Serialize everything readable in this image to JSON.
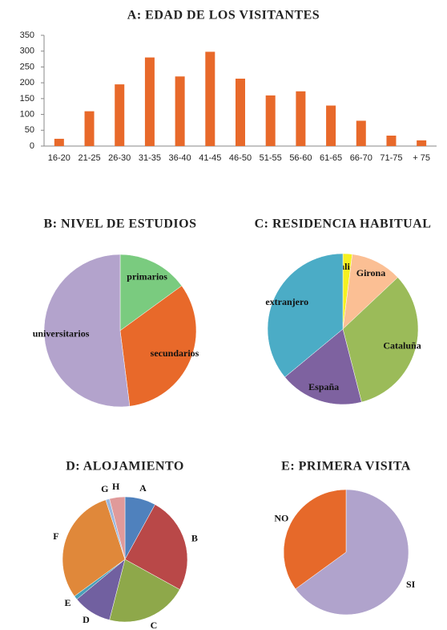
{
  "chart_data": [
    {
      "type": "bar",
      "title": "A: EDAD  DE LOS VISITANTES",
      "categories": [
        "16-20",
        "21-25",
        "26-30",
        "31-35",
        "36-40",
        "41-45",
        "46-50",
        "51-55",
        "56-60",
        "61-65",
        "66-70",
        "71-75",
        "+ 75"
      ],
      "values": [
        23,
        110,
        195,
        280,
        220,
        298,
        213,
        160,
        173,
        128,
        80,
        33,
        18
      ],
      "color": "#e8692a",
      "ylim": [
        0,
        350
      ],
      "yticks": [
        0,
        50,
        100,
        150,
        200,
        250,
        300,
        350
      ]
    },
    {
      "type": "pie",
      "title": "B: NIVEL DE ESTUDIOS",
      "categories": [
        "primarios",
        "secundarios",
        "universitarios"
      ],
      "values": [
        15,
        33,
        52
      ],
      "colors": [
        "#7acb7f",
        "#e8692a",
        "#b3a3cc"
      ]
    },
    {
      "type": "pie",
      "title": "C: RESIDENCIA HABITUAL",
      "categories": [
        "localidad",
        "Girona",
        "Cataluña",
        "España",
        "extranjero"
      ],
      "values": [
        2,
        11,
        33,
        18,
        36
      ],
      "colors": [
        "#f5f020",
        "#fbbf94",
        "#9bbb59",
        "#7e62a0",
        "#4bacc6"
      ]
    },
    {
      "type": "pie",
      "title": "D: ALOJAMIENTO",
      "categories": [
        "A",
        "B",
        "C",
        "D",
        "E",
        "F",
        "G",
        "H"
      ],
      "values": [
        8,
        25,
        21,
        10,
        1,
        30,
        1,
        4
      ],
      "colors": [
        "#4f81bd",
        "#b94848",
        "#8ea84a",
        "#7160a0",
        "#4aa0b8",
        "#e0883a",
        "#9ab7de",
        "#e09a9a"
      ]
    },
    {
      "type": "pie",
      "title": "E: PRIMERA VISITA",
      "categories": [
        "SI",
        "NO"
      ],
      "values": [
        65,
        35
      ],
      "colors": [
        "#b0a3cc",
        "#e6692a"
      ]
    }
  ]
}
